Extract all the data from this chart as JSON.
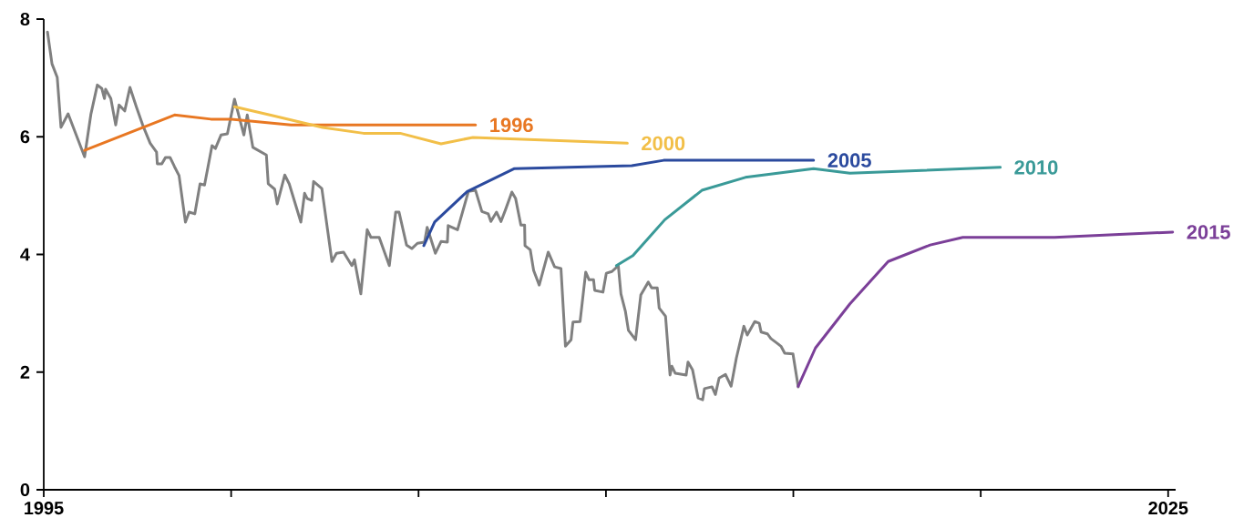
{
  "chart_data": {
    "type": "line",
    "marker": "none",
    "xlim": [
      1995,
      2025.2
    ],
    "ylim": [
      0,
      8
    ],
    "xticks": [
      {
        "value": 1995,
        "label": "1995"
      },
      {
        "value": 2000,
        "label": null
      },
      {
        "value": 2005,
        "label": null
      },
      {
        "value": 2010,
        "label": null
      },
      {
        "value": 2015,
        "label": null
      },
      {
        "value": 2020,
        "label": null
      },
      {
        "value": 2025,
        "label": "2025"
      }
    ],
    "yticks": [
      0,
      2,
      4,
      6,
      8
    ],
    "series": [
      {
        "color": "#808080",
        "x": [
          1995.1,
          1995.22,
          1995.36,
          1995.46,
          1995.65,
          1996.09,
          1996.26,
          1996.43,
          1996.55,
          1996.62,
          1996.65,
          1996.79,
          1996.92,
          1997.01,
          1997.16,
          1997.3,
          1997.47,
          1997.64,
          1997.84,
          1998.01,
          1998.03,
          1998.15,
          1998.25,
          1998.37,
          1998.49,
          1998.61,
          1998.78,
          1998.88,
          1999.03,
          1999.17,
          1999.29,
          1999.49,
          1999.58,
          1999.73,
          1999.9,
          2000.09,
          2000.34,
          2000.43,
          2000.58,
          2000.94,
          2000.99,
          2001.16,
          2001.23,
          2001.43,
          2001.55,
          2001.86,
          2001.96,
          2002.03,
          2002.15,
          2002.2,
          2002.42,
          2002.69,
          2002.81,
          2003.0,
          2003.22,
          2003.29,
          2003.46,
          2003.63,
          2003.73,
          2003.95,
          2004.22,
          2004.39,
          2004.48,
          2004.68,
          2004.82,
          2004.97,
          2005.16,
          2005.23,
          2005.45,
          2005.6,
          2005.77,
          2005.79,
          2006.04,
          2006.33,
          2006.52,
          2006.69,
          2006.86,
          2006.93,
          2007.08,
          2007.2,
          2007.32,
          2007.49,
          2007.59,
          2007.73,
          2007.83,
          2007.84,
          2007.98,
          2008.07,
          2008.22,
          2008.46,
          2008.63,
          2008.8,
          2008.92,
          2009.07,
          2009.12,
          2009.31,
          2009.46,
          2009.55,
          2009.67,
          2009.7,
          2009.92,
          2010.01,
          2010.16,
          2010.33,
          2010.4,
          2010.52,
          2010.6,
          2010.79,
          2010.93,
          2011.13,
          2011.22,
          2011.37,
          2011.42,
          2011.59,
          2011.71,
          2011.76,
          2011.85,
          2012.14,
          2012.19,
          2012.31,
          2012.46,
          2012.58,
          2012.63,
          2012.83,
          2012.92,
          2013.02,
          2013.19,
          2013.34,
          2013.48,
          2013.68,
          2013.77,
          2013.97,
          2014.09,
          2014.14,
          2014.31,
          2014.4,
          2014.57,
          2014.67,
          2014.77,
          2014.99,
          2015.13
        ],
        "values": [
          7.78,
          7.24,
          7.01,
          6.16,
          6.39,
          5.66,
          6.39,
          6.88,
          6.82,
          6.65,
          6.81,
          6.65,
          6.2,
          6.54,
          6.44,
          6.84,
          6.51,
          6.2,
          5.89,
          5.74,
          5.54,
          5.54,
          5.65,
          5.65,
          5.49,
          5.34,
          4.55,
          4.72,
          4.69,
          5.2,
          5.18,
          5.85,
          5.8,
          6.03,
          6.05,
          6.64,
          6.03,
          6.37,
          5.82,
          5.69,
          5.2,
          5.11,
          4.86,
          5.35,
          5.2,
          4.55,
          5.04,
          4.95,
          4.92,
          5.24,
          5.12,
          3.88,
          4.02,
          4.04,
          3.81,
          3.91,
          3.33,
          4.42,
          4.29,
          4.29,
          3.81,
          4.72,
          4.72,
          4.16,
          4.1,
          4.19,
          4.21,
          4.46,
          4.02,
          4.22,
          4.21,
          4.49,
          4.42,
          5.07,
          5.09,
          4.73,
          4.69,
          4.56,
          4.72,
          4.56,
          4.76,
          5.06,
          4.95,
          4.5,
          4.5,
          4.15,
          4.08,
          3.73,
          3.48,
          4.04,
          3.79,
          3.76,
          2.44,
          2.55,
          2.85,
          2.86,
          3.7,
          3.57,
          3.57,
          3.39,
          3.36,
          3.68,
          3.71,
          3.81,
          3.33,
          3.03,
          2.71,
          2.55,
          3.31,
          3.53,
          3.43,
          3.43,
          3.09,
          2.95,
          1.95,
          2.1,
          1.98,
          1.95,
          2.17,
          2.04,
          1.56,
          1.53,
          1.72,
          1.75,
          1.62,
          1.9,
          1.96,
          1.76,
          2.24,
          2.78,
          2.63,
          2.86,
          2.83,
          2.68,
          2.65,
          2.57,
          2.49,
          2.44,
          2.32,
          2.31,
          1.75
        ]
      },
      {
        "name": "1996",
        "color": "#e87722",
        "x": [
          1996.09,
          1998.49,
          1999.46,
          1999.95,
          2001.6,
          2003.05,
          2006.52
        ],
        "values": [
          5.77,
          6.37,
          6.3,
          6.3,
          6.2,
          6.2,
          6.2
        ]
      },
      {
        "name": "2000",
        "color": "#f2bf48",
        "x": [
          2000.09,
          2001.11,
          2002.44,
          2003.53,
          2004.51,
          2005.6,
          2006.45,
          2010.57
        ],
        "values": [
          6.51,
          6.36,
          6.16,
          6.06,
          6.06,
          5.88,
          5.99,
          5.89
        ]
      },
      {
        "name": "2005",
        "color": "#2b4a9e",
        "x": [
          2005.14,
          2005.43,
          2006.3,
          2007.56,
          2010.69,
          2011.54,
          2015.54
        ],
        "values": [
          4.15,
          4.55,
          5.07,
          5.46,
          5.51,
          5.6,
          5.6
        ]
      },
      {
        "name": "2010",
        "color": "#3a9a98",
        "x": [
          2010.28,
          2010.72,
          2011.57,
          2012.56,
          2013.72,
          2015.54,
          2016.51,
          2020.52
        ],
        "values": [
          3.81,
          3.98,
          4.59,
          5.09,
          5.31,
          5.46,
          5.38,
          5.48
        ]
      },
      {
        "name": "2015",
        "color": "#7b3f98",
        "x": [
          2015.13,
          2015.59,
          2016.51,
          2017.53,
          2018.65,
          2019.52,
          2021.97,
          2025.12
        ],
        "values": [
          1.76,
          2.41,
          3.16,
          3.88,
          4.16,
          4.29,
          4.29,
          4.38
        ]
      }
    ]
  }
}
